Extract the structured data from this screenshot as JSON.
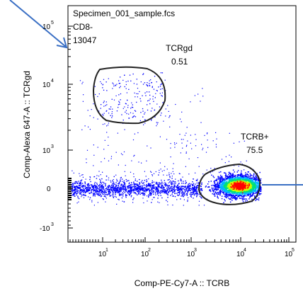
{
  "header": {
    "file_name": "Specimen_001_sample.fcs",
    "parent_gate": "CD8-",
    "event_count": "13047"
  },
  "chart_data": {
    "type": "scatter",
    "plot_style": "pseudocolor density dot plot",
    "xlabel": "Comp-PE-Cy7-A :: TCRB",
    "ylabel": "Comp-Alexa 647-A :: TCRgd",
    "x_scale": "biexponential",
    "y_scale": "biexponential",
    "x_ticks": [
      "10",
      "10",
      "10",
      "10",
      "10"
    ],
    "x_tick_exponents": [
      "1",
      "2",
      "3",
      "4",
      "5"
    ],
    "y_ticks": [
      "-10",
      "0",
      "10",
      "10",
      "10"
    ],
    "y_tick_exponents": [
      "3",
      "",
      "3",
      "4",
      "5"
    ],
    "gates": [
      {
        "name": "TCRgd",
        "percent": "0.51"
      },
      {
        "name": "TCRB+",
        "percent": "75.5"
      }
    ],
    "populations": [
      {
        "description": "main TCRB+ cluster",
        "x_center": 10000,
        "y_center": 0,
        "density": "high"
      },
      {
        "description": "low-TCRB scatter band",
        "x_range": [
          5,
          1000
        ],
        "y_center": 0,
        "density": "medium"
      },
      {
        "description": "TCRgd+ sparse events",
        "x_range": [
          5,
          300
        ],
        "y_range": [
          3000,
          30000
        ],
        "density": "low"
      }
    ],
    "density_colors": [
      "#0000ff",
      "#00b4ff",
      "#00e07a",
      "#c8ff00",
      "#ffd200",
      "#ff7800",
      "#ff0000"
    ]
  },
  "colors": {
    "annotation_arrow": "#3a6fc4",
    "gate_outline": "#222222",
    "axis": "#000000"
  }
}
